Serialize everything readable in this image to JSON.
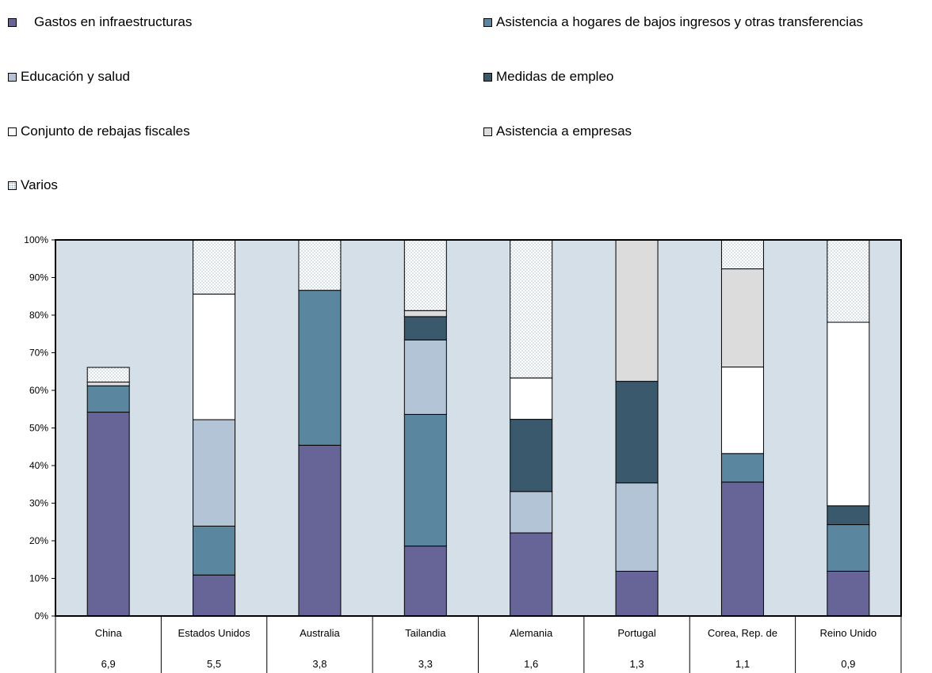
{
  "chart_data": {
    "type": "bar",
    "stacked": true,
    "normalized": true,
    "categories": [
      "China",
      "Estados Unidos",
      "Australia",
      "Tailandia",
      "Alemania",
      "Portugal",
      "Corea, Rep. de",
      "Reino Unido"
    ],
    "category_values": [
      "6,9",
      "5,5",
      "3,8",
      "3,3",
      "1,6",
      "1,3",
      "1,1",
      "0,9"
    ],
    "series": [
      {
        "name": "Gastos en infraestructuras",
        "color": "#676498",
        "values": [
          54.2,
          10.9,
          45.4,
          18.6,
          22.1,
          11.9,
          35.6,
          11.9
        ]
      },
      {
        "name": "Asistencia a hogares de bajos ingresos y otras transferencias",
        "color": "#5b869f",
        "values": [
          7.0,
          13.0,
          41.2,
          35.0,
          0,
          0,
          7.6,
          12.4
        ]
      },
      {
        "name": "Educación y salud",
        "color": "#b2c4d6",
        "values": [
          0,
          28.3,
          0,
          19.8,
          11.0,
          23.5,
          0,
          0
        ]
      },
      {
        "name": "Medidas de empleo",
        "color": "#3b596d",
        "values": [
          0,
          0,
          0,
          6.2,
          19.2,
          27.0,
          0,
          5.0
        ]
      },
      {
        "name": "Conjunto de rebajas fiscales",
        "color": "#ffffff",
        "values": [
          0,
          33.4,
          0,
          0,
          11.0,
          0,
          23.0,
          48.8
        ]
      },
      {
        "name": "Asistencia a empresas",
        "color": "#dcdcdc",
        "values": [
          1.0,
          0,
          0,
          1.6,
          0,
          37.6,
          26.1,
          0
        ]
      },
      {
        "name": "Varios",
        "color": "pattern-dots",
        "values": [
          3.9,
          14.4,
          13.4,
          18.8,
          36.7,
          0,
          7.7,
          21.9
        ]
      }
    ],
    "ylim": [
      0,
      100
    ],
    "yticks": [
      "0%",
      "10%",
      "20%",
      "30%",
      "40%",
      "50%",
      "60%",
      "70%",
      "80%",
      "90%",
      "100%"
    ],
    "plot_background": "#d5dfe8",
    "grid": false,
    "legend_position": "top"
  }
}
